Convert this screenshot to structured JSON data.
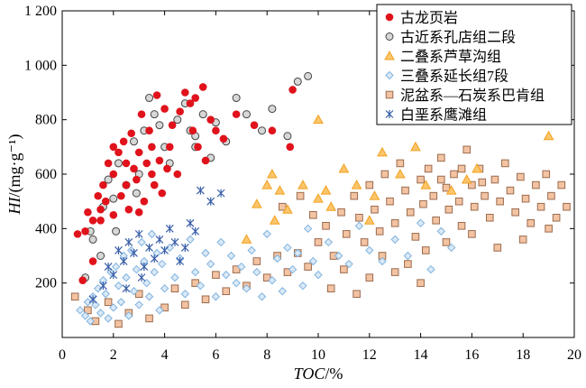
{
  "chart_data": {
    "type": "scatter",
    "xlabel": "TOC/%",
    "ylabel": "HI/(mg·g⁻¹)",
    "xlabel_italic_part": "TOC",
    "xlabel_rest": "/%",
    "ylabel_italic_part": "HI",
    "ylabel_rest": "/(mg·g⁻¹)",
    "xlim": [
      0,
      20
    ],
    "ylim": [
      0,
      1200
    ],
    "x_ticks": [
      0,
      2,
      4,
      6,
      8,
      10,
      12,
      14,
      16,
      18,
      20
    ],
    "y_ticks": [
      200,
      400,
      600,
      800,
      1000,
      1200
    ],
    "x_tick_labels": [
      "0",
      "2",
      "4",
      "6",
      "8",
      "10",
      "12",
      "14",
      "16",
      "18",
      "20"
    ],
    "y_tick_labels": [
      "200",
      "400",
      "600",
      "800",
      "1 000",
      "1 200"
    ],
    "grid": false,
    "legend_position": "top-right",
    "series": [
      {
        "name": "古龙页岩",
        "marker": "circle-filled",
        "color": "#e0121b",
        "points": [
          [
            0.9,
            390
          ],
          [
            1.0,
            460
          ],
          [
            1.2,
            430
          ],
          [
            1.4,
            520
          ],
          [
            1.5,
            470
          ],
          [
            1.6,
            560
          ],
          [
            1.7,
            500
          ],
          [
            1.8,
            640
          ],
          [
            2.0,
            600
          ],
          [
            2.0,
            450
          ],
          [
            2.2,
            680
          ],
          [
            2.3,
            520
          ],
          [
            2.4,
            720
          ],
          [
            2.5,
            560
          ],
          [
            2.6,
            470
          ],
          [
            2.7,
            750
          ],
          [
            2.8,
            620
          ],
          [
            2.9,
            580
          ],
          [
            3.0,
            680
          ],
          [
            3.1,
            820
          ],
          [
            3.2,
            500
          ],
          [
            3.3,
            640
          ],
          [
            3.4,
            760
          ],
          [
            3.5,
            700
          ],
          [
            3.6,
            560
          ],
          [
            3.7,
            890
          ],
          [
            3.8,
            650
          ],
          [
            3.9,
            530
          ],
          [
            4.0,
            840
          ],
          [
            4.1,
            620
          ],
          [
            4.2,
            700
          ],
          [
            4.3,
            780
          ],
          [
            4.5,
            600
          ],
          [
            4.6,
            830
          ],
          [
            4.8,
            900
          ],
          [
            5.0,
            860
          ],
          [
            5.1,
            760
          ],
          [
            5.2,
            880
          ],
          [
            5.3,
            700
          ],
          [
            5.5,
            920
          ],
          [
            5.6,
            650
          ],
          [
            5.8,
            800
          ],
          [
            6.0,
            760
          ],
          [
            6.3,
            730
          ],
          [
            6.8,
            820
          ],
          [
            7.5,
            780
          ],
          [
            8.2,
            760
          ],
          [
            8.9,
            700
          ],
          [
            9.0,
            910
          ],
          [
            1.2,
            280
          ],
          [
            0.8,
            210
          ],
          [
            0.6,
            380
          ],
          [
            2.0,
            700
          ],
          [
            2.5,
            640
          ],
          [
            3.0,
            460
          ],
          [
            3.5,
            600
          ],
          [
            1.5,
            430
          ]
        ]
      },
      {
        "name": "古近系孔店组二段",
        "marker": "circle-open",
        "color": "#444444",
        "fill": "#d7d7d7",
        "points": [
          [
            0.9,
            220
          ],
          [
            1.1,
            390
          ],
          [
            1.2,
            360
          ],
          [
            1.5,
            300
          ],
          [
            1.6,
            480
          ],
          [
            1.8,
            580
          ],
          [
            2.0,
            510
          ],
          [
            2.2,
            640
          ],
          [
            2.5,
            560
          ],
          [
            2.8,
            720
          ],
          [
            3.0,
            600
          ],
          [
            3.2,
            760
          ],
          [
            3.4,
            880
          ],
          [
            3.6,
            820
          ],
          [
            3.8,
            780
          ],
          [
            4.0,
            700
          ],
          [
            4.2,
            640
          ],
          [
            4.5,
            800
          ],
          [
            4.8,
            860
          ],
          [
            5.0,
            760
          ],
          [
            5.2,
            700
          ],
          [
            5.5,
            820
          ],
          [
            5.8,
            660
          ],
          [
            6.0,
            790
          ],
          [
            6.4,
            720
          ],
          [
            6.8,
            880
          ],
          [
            7.2,
            820
          ],
          [
            7.8,
            760
          ],
          [
            8.2,
            840
          ],
          [
            8.8,
            740
          ],
          [
            9.2,
            940
          ],
          [
            9.6,
            960
          ],
          [
            2.1,
            390
          ],
          [
            2.9,
            530
          ],
          [
            5.2,
            740
          ]
        ]
      },
      {
        "name": "二叠系芦草沟组",
        "marker": "triangle",
        "color": "#f2a11f",
        "points": [
          [
            7.2,
            360
          ],
          [
            7.6,
            490
          ],
          [
            8.0,
            560
          ],
          [
            8.2,
            600
          ],
          [
            8.3,
            430
          ],
          [
            8.5,
            540
          ],
          [
            8.8,
            470
          ],
          [
            9.4,
            560
          ],
          [
            10.0,
            510
          ],
          [
            10.3,
            540
          ],
          [
            10.5,
            480
          ],
          [
            11.0,
            620
          ],
          [
            11.5,
            560
          ],
          [
            12.0,
            430
          ],
          [
            12.5,
            680
          ],
          [
            13.2,
            600
          ],
          [
            13.8,
            700
          ],
          [
            14.2,
            560
          ],
          [
            15.2,
            540
          ],
          [
            15.8,
            580
          ],
          [
            16.2,
            620
          ],
          [
            19.0,
            740
          ],
          [
            10.0,
            800
          ],
          [
            12.2,
            520
          ]
        ]
      },
      {
        "name": "三叠系延长组7段",
        "marker": "diamond",
        "color": "#7fb3df",
        "fill": "#dbe9f7",
        "points": [
          [
            0.7,
            100
          ],
          [
            0.9,
            80
          ],
          [
            1.0,
            130
          ],
          [
            1.1,
            60
          ],
          [
            1.2,
            150
          ],
          [
            1.3,
            120
          ],
          [
            1.4,
            180
          ],
          [
            1.5,
            90
          ],
          [
            1.6,
            210
          ],
          [
            1.7,
            160
          ],
          [
            1.8,
            70
          ],
          [
            1.9,
            240
          ],
          [
            2.0,
            110
          ],
          [
            2.1,
            260
          ],
          [
            2.2,
            190
          ],
          [
            2.3,
            130
          ],
          [
            2.4,
            300
          ],
          [
            2.5,
            220
          ],
          [
            2.6,
            80
          ],
          [
            2.7,
            320
          ],
          [
            2.8,
            170
          ],
          [
            2.9,
            250
          ],
          [
            3.0,
            120
          ],
          [
            3.1,
            350
          ],
          [
            3.2,
            280
          ],
          [
            3.3,
            200
          ],
          [
            3.4,
            150
          ],
          [
            3.5,
            380
          ],
          [
            3.6,
            240
          ],
          [
            3.7,
            310
          ],
          [
            3.8,
            100
          ],
          [
            3.9,
            270
          ],
          [
            4.0,
            180
          ],
          [
            4.2,
            330
          ],
          [
            4.4,
            220
          ],
          [
            4.6,
            290
          ],
          [
            4.8,
            160
          ],
          [
            5.0,
            360
          ],
          [
            5.2,
            240
          ],
          [
            5.4,
            190
          ],
          [
            5.6,
            310
          ],
          [
            5.8,
            270
          ],
          [
            6.0,
            150
          ],
          [
            6.2,
            350
          ],
          [
            6.4,
            230
          ],
          [
            6.6,
            300
          ],
          [
            6.8,
            200
          ],
          [
            7.0,
            260
          ],
          [
            7.2,
            180
          ],
          [
            7.4,
            320
          ],
          [
            7.6,
            240
          ],
          [
            7.8,
            150
          ],
          [
            8.0,
            380
          ],
          [
            8.2,
            210
          ],
          [
            8.4,
            290
          ],
          [
            8.6,
            170
          ],
          [
            8.8,
            330
          ],
          [
            9.0,
            250
          ],
          [
            9.2,
            310
          ],
          [
            9.4,
            190
          ],
          [
            9.6,
            400
          ],
          [
            9.8,
            280
          ],
          [
            10.0,
            230
          ],
          [
            10.4,
            350
          ],
          [
            10.8,
            300
          ],
          [
            11.2,
            270
          ],
          [
            11.6,
            410
          ],
          [
            12.0,
            320
          ],
          [
            12.5,
            280
          ],
          [
            13.0,
            360
          ],
          [
            13.5,
            300
          ],
          [
            14.0,
            420
          ],
          [
            14.4,
            250
          ],
          [
            14.8,
            390
          ],
          [
            15.2,
            330
          ]
        ]
      },
      {
        "name": "泥盆系—石炭系巴肯组",
        "marker": "square",
        "color": "#9a6b4f",
        "fill": "#f3c3a2",
        "points": [
          [
            0.5,
            150
          ],
          [
            1.0,
            100
          ],
          [
            1.3,
            60
          ],
          [
            1.8,
            130
          ],
          [
            2.2,
            50
          ],
          [
            2.6,
            90
          ],
          [
            3.0,
            160
          ],
          [
            3.4,
            70
          ],
          [
            4.0,
            110
          ],
          [
            4.4,
            180
          ],
          [
            4.8,
            120
          ],
          [
            5.2,
            200
          ],
          [
            5.6,
            140
          ],
          [
            6.0,
            230
          ],
          [
            6.4,
            170
          ],
          [
            6.8,
            250
          ],
          [
            7.2,
            190
          ],
          [
            7.6,
            280
          ],
          [
            8.0,
            220
          ],
          [
            8.4,
            300
          ],
          [
            8.8,
            240
          ],
          [
            9.2,
            310
          ],
          [
            9.6,
            260
          ],
          [
            10.0,
            350
          ],
          [
            10.3,
            410
          ],
          [
            10.6,
            300
          ],
          [
            10.9,
            460
          ],
          [
            11.1,
            380
          ],
          [
            11.4,
            520
          ],
          [
            11.6,
            440
          ],
          [
            11.8,
            350
          ],
          [
            12.0,
            560
          ],
          [
            12.2,
            470
          ],
          [
            12.4,
            390
          ],
          [
            12.6,
            600
          ],
          [
            12.8,
            500
          ],
          [
            13.0,
            420
          ],
          [
            13.2,
            640
          ],
          [
            13.4,
            540
          ],
          [
            13.6,
            460
          ],
          [
            13.8,
            370
          ],
          [
            14.0,
            580
          ],
          [
            14.1,
            490
          ],
          [
            14.3,
            620
          ],
          [
            14.5,
            520
          ],
          [
            14.6,
            430
          ],
          [
            14.8,
            660
          ],
          [
            15.0,
            550
          ],
          [
            15.1,
            470
          ],
          [
            15.3,
            600
          ],
          [
            15.5,
            500
          ],
          [
            15.6,
            410
          ],
          [
            15.8,
            690
          ],
          [
            16.0,
            560
          ],
          [
            16.1,
            480
          ],
          [
            16.3,
            620
          ],
          [
            16.5,
            520
          ],
          [
            16.7,
            440
          ],
          [
            16.9,
            580
          ],
          [
            17.1,
            500
          ],
          [
            17.3,
            640
          ],
          [
            17.5,
            540
          ],
          [
            17.7,
            460
          ],
          [
            17.9,
            590
          ],
          [
            18.1,
            510
          ],
          [
            18.3,
            420
          ],
          [
            18.5,
            560
          ],
          [
            18.7,
            480
          ],
          [
            18.9,
            600
          ],
          [
            19.1,
            520
          ],
          [
            19.3,
            440
          ],
          [
            19.5,
            560
          ],
          [
            19.7,
            480
          ],
          [
            12.5,
            300
          ],
          [
            13.5,
            270
          ],
          [
            14.2,
            320
          ],
          [
            15.0,
            350
          ],
          [
            16.0,
            380
          ],
          [
            17.0,
            330
          ],
          [
            18.0,
            360
          ],
          [
            19.0,
            400
          ],
          [
            11.0,
            250
          ],
          [
            12.0,
            220
          ],
          [
            13.0,
            240
          ],
          [
            14.0,
            200
          ],
          [
            10.5,
            180
          ],
          [
            11.5,
            160
          ],
          [
            9.8,
            450
          ],
          [
            9.3,
            520
          ],
          [
            8.6,
            480
          ],
          [
            14.8,
            580
          ],
          [
            15.6,
            620
          ],
          [
            16.4,
            570
          ]
        ]
      },
      {
        "name": "白垩系鹰滩组",
        "marker": "asterisk",
        "color": "#3a5fa8",
        "points": [
          [
            1.2,
            140
          ],
          [
            1.6,
            190
          ],
          [
            1.8,
            260
          ],
          [
            2.0,
            230
          ],
          [
            2.2,
            320
          ],
          [
            2.4,
            280
          ],
          [
            2.6,
            350
          ],
          [
            2.8,
            310
          ],
          [
            3.0,
            380
          ],
          [
            3.2,
            260
          ],
          [
            3.4,
            330
          ],
          [
            3.6,
            290
          ],
          [
            3.8,
            360
          ],
          [
            4.0,
            320
          ],
          [
            4.2,
            400
          ],
          [
            4.4,
            350
          ],
          [
            4.6,
            280
          ],
          [
            4.8,
            330
          ],
          [
            5.0,
            420
          ],
          [
            5.2,
            390
          ],
          [
            5.4,
            540
          ],
          [
            5.8,
            500
          ],
          [
            6.2,
            530
          ],
          [
            2.5,
            180
          ],
          [
            3.1,
            220
          ]
        ]
      }
    ]
  }
}
